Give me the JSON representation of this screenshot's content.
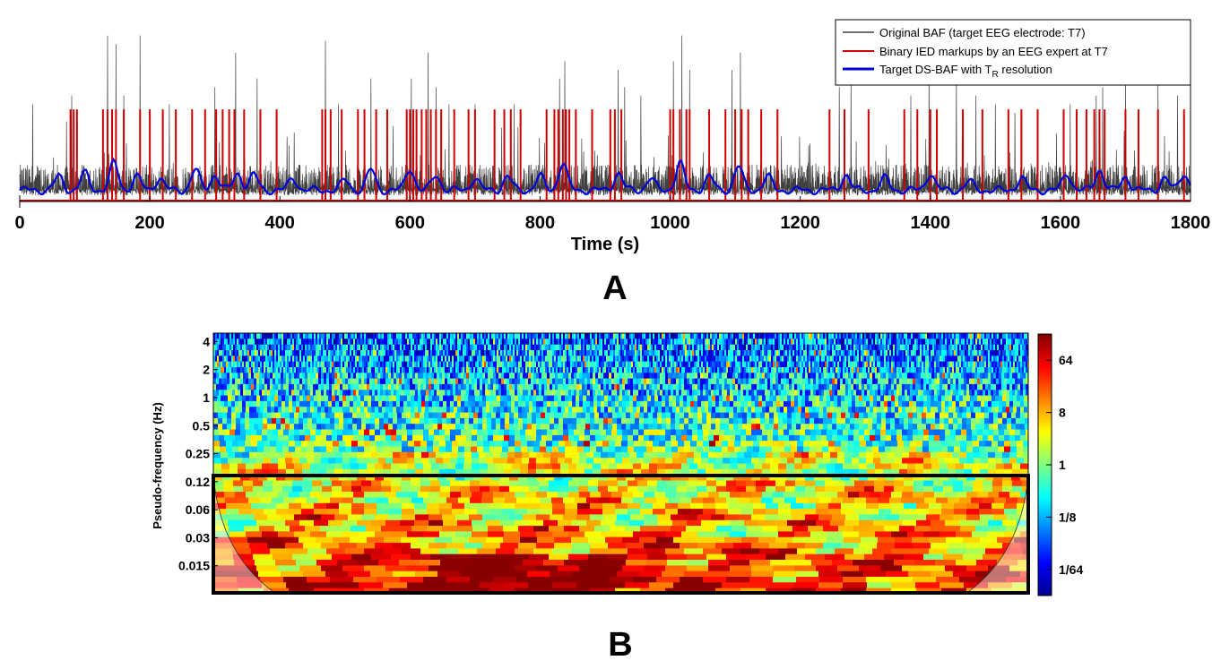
{
  "chart_data": [
    {
      "type": "line",
      "panel_label": "A",
      "xlabel": "Time (s)",
      "ylabel": "",
      "xlim": [
        0,
        1800
      ],
      "x_ticks": [
        "0",
        "200",
        "400",
        "600",
        "800",
        "1000",
        "1200",
        "1400",
        "1600",
        "1800"
      ],
      "x_tick_values": [
        0,
        200,
        400,
        600,
        800,
        1000,
        1200,
        1400,
        1600,
        1800
      ],
      "ylim": [
        0,
        1
      ],
      "legend_placement": "top-right",
      "series": [
        {
          "name": "Original BAF (target EEG electrode: T7)",
          "color": "#404040",
          "style": "thin dense line, baseline ~0.1, spikes up to ~0.95"
        },
        {
          "name": "Binary IED markups by an EEG expert  at T7",
          "color": "#cc0000",
          "style": "binary spikes of height ~0.5"
        },
        {
          "name": "Target DS-BAF with T_R resolution",
          "color": "#0000dd",
          "style": "smooth line ~0.05–0.25"
        }
      ],
      "ied_event_times": [
        78,
        83,
        88,
        128,
        135,
        142,
        148,
        160,
        185,
        200,
        220,
        240,
        265,
        285,
        302,
        312,
        322,
        330,
        345,
        370,
        395,
        465,
        470,
        478,
        495,
        520,
        530,
        548,
        565,
        595,
        600,
        605,
        610,
        618,
        625,
        632,
        640,
        648,
        668,
        690,
        700,
        730,
        745,
        755,
        770,
        810,
        822,
        828,
        835,
        840,
        845,
        855,
        880,
        908,
        915,
        925,
        1000,
        1005,
        1015,
        1025,
        1030,
        1060,
        1085,
        1100,
        1110,
        1120,
        1140,
        1165,
        1245,
        1268,
        1305,
        1360,
        1380,
        1400,
        1410,
        1450,
        1480,
        1520,
        1540,
        1565,
        1605,
        1625,
        1640,
        1652,
        1660,
        1668,
        1700,
        1720,
        1750,
        1790
      ],
      "baf_spikes": [
        [
          20,
          0.55
        ],
        [
          72,
          0.45
        ],
        [
          80,
          0.6
        ],
        [
          135,
          0.95
        ],
        [
          148,
          0.9
        ],
        [
          160,
          0.6
        ],
        [
          185,
          0.95
        ],
        [
          230,
          0.55
        ],
        [
          300,
          0.65
        ],
        [
          332,
          0.85
        ],
        [
          365,
          0.7
        ],
        [
          470,
          0.92
        ],
        [
          490,
          0.55
        ],
        [
          540,
          0.7
        ],
        [
          602,
          0.7
        ],
        [
          628,
          0.85
        ],
        [
          640,
          0.65
        ],
        [
          660,
          0.55
        ],
        [
          700,
          0.55
        ],
        [
          760,
          0.55
        ],
        [
          830,
          0.7
        ],
        [
          838,
          0.8
        ],
        [
          920,
          0.75
        ],
        [
          930,
          0.65
        ],
        [
          955,
          0.6
        ],
        [
          1005,
          0.8
        ],
        [
          1018,
          0.95
        ],
        [
          1030,
          0.75
        ],
        [
          1095,
          0.75
        ],
        [
          1108,
          0.85
        ],
        [
          1260,
          0.65
        ],
        [
          1278,
          0.7
        ],
        [
          1370,
          0.6
        ],
        [
          1398,
          0.8
        ],
        [
          1440,
          0.7
        ],
        [
          1470,
          0.6
        ],
        [
          1500,
          0.55
        ],
        [
          1530,
          0.5
        ],
        [
          1615,
          0.55
        ],
        [
          1655,
          0.6
        ],
        [
          1665,
          0.65
        ],
        [
          1700,
          0.7
        ],
        [
          1750,
          0.7
        ],
        [
          1780,
          0.6
        ]
      ],
      "ds_baf_bumps": [
        [
          60,
          0.08
        ],
        [
          100,
          0.1
        ],
        [
          145,
          0.16
        ],
        [
          180,
          0.08
        ],
        [
          215,
          0.07
        ],
        [
          270,
          0.12
        ],
        [
          300,
          0.09
        ],
        [
          335,
          0.1
        ],
        [
          360,
          0.09
        ],
        [
          420,
          0.07
        ],
        [
          500,
          0.06
        ],
        [
          540,
          0.12
        ],
        [
          600,
          0.13
        ],
        [
          640,
          0.09
        ],
        [
          700,
          0.07
        ],
        [
          750,
          0.08
        ],
        [
          800,
          0.08
        ],
        [
          835,
          0.16
        ],
        [
          920,
          0.1
        ],
        [
          970,
          0.07
        ],
        [
          1015,
          0.16
        ],
        [
          1060,
          0.08
        ],
        [
          1105,
          0.14
        ],
        [
          1150,
          0.08
        ],
        [
          1270,
          0.09
        ],
        [
          1330,
          0.07
        ],
        [
          1400,
          0.1
        ],
        [
          1460,
          0.05
        ],
        [
          1540,
          0.07
        ],
        [
          1610,
          0.1
        ],
        [
          1660,
          0.12
        ],
        [
          1700,
          0.08
        ],
        [
          1760,
          0.07
        ],
        [
          1790,
          0.1
        ]
      ]
    },
    {
      "type": "heatmap",
      "panel_label": "B",
      "title": "",
      "xlabel": "",
      "ylabel": "Pseudo-frequency (Hz)",
      "y_ticks": [
        "4",
        "2",
        "1",
        "0.5",
        "0.25",
        "0.12",
        "0.06",
        "0.03",
        "0.015"
      ],
      "y_tick_values_log2": [
        2,
        1,
        0,
        -1,
        -2,
        -3,
        -4,
        -5,
        -6
      ],
      "ylim_log2": [
        -7,
        2.3
      ],
      "colorbar": {
        "ticks": [
          "64",
          "8",
          "1",
          "1/8",
          "1/64"
        ],
        "tick_values_log2": [
          6,
          3,
          0,
          -3,
          -6
        ],
        "range_log2": [
          -7.5,
          7.5
        ],
        "colormap": "jet"
      },
      "cone_of_influence": "shaded outside curved boundary at lower-left and lower-right",
      "highlight_box": "frequencies <= 0.12 Hz (thick black rectangle)",
      "low_frequency_hotspot_center_fraction": 0.35
    }
  ],
  "colors": {
    "baf": "#404040",
    "ied": "#cc0000",
    "ds_baf": "#0000dd"
  }
}
